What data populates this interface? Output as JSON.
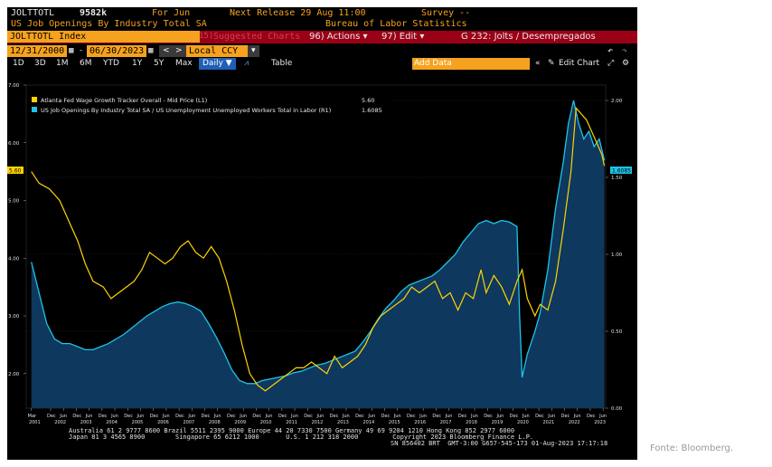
{
  "header": {
    "ticker": "JOLTTOTL",
    "value": "9582k",
    "period": "For Jun",
    "next_release": "Next Release 29 Aug 11:00",
    "survey": "Survey --",
    "series_title": "US Job Openings By Industry Total SA",
    "source": "Bureau of Labor Statistics",
    "index_label": "JOLTTOTL Index",
    "suggested_charts": "Suggested Charts",
    "suggested_num": "15)",
    "actions": "96) Actions ▾",
    "edit": "97) Edit ▾",
    "chart_name": "G 232: Jolts / Desempregados"
  },
  "toolbar": {
    "start_date": "12/31/2000",
    "end_date": "06/30/2023",
    "currency": "Local CCY",
    "ranges": [
      "1D",
      "3D",
      "1M",
      "6M",
      "YTD",
      "1Y",
      "5Y",
      "Max"
    ],
    "frequency": "Daily ▼",
    "table": "Table",
    "add_data": "Add Data",
    "edit_chart": "Edit Chart"
  },
  "legend": {
    "series1": "Atlanta Fed Wage Growth Tracker Overall - Mid Price (L1)",
    "series1_value": "5.60",
    "series2": "US Job Openings By Industry Total SA / US Unemployment Unemployed Workers Total in Labor (R1)",
    "series2_value": "1.6085"
  },
  "axis_badges": {
    "left": "5.60",
    "right": "1.6085"
  },
  "footer": {
    "line1": "Australia 61 2 9777 8600 Brazil 5511 2395 9000 Europe 44 20 7330 7500 Germany 49 69 9204 1210 Hong Kong 852 2977 6000",
    "line2": "Japan 81 3 4565 8900        Singapore 65 6212 1000       U.S. 1 212 318 2000         Copyright 2023 Bloomberg Finance L.P.",
    "line3": "SN 856402 BRT  GMT-3:00 G657-545-173 01-Aug-2023 17:17:18"
  },
  "caption": "Fonte: Bloomberg.",
  "chart_data": {
    "type": "line",
    "title": "G 232: Jolts / Desempregados",
    "x_start": "Mar 2001",
    "x_end": "Jun 2023",
    "x_month_labels": [
      "Mar",
      "Dec",
      "Jun",
      "Dec",
      "Jun",
      "Dec",
      "Jun",
      "Dec",
      "Jun",
      "Dec",
      "Jun",
      "Dec",
      "Jun",
      "Dec",
      "Jun",
      "Dec",
      "Jun",
      "Dec",
      "Jun",
      "Dec",
      "Jun",
      "Dec",
      "Jun",
      "Dec",
      "Jun",
      "Dec",
      "Jun",
      "Dec",
      "Jun",
      "Dec",
      "Jun",
      "Dec",
      "Jun",
      "Dec",
      "Jun",
      "Dec",
      "Jun",
      "Dec",
      "Jun",
      "Dec",
      "Jun",
      "Dec",
      "Jun",
      "Dec",
      "Jun",
      "Dec",
      "Jun"
    ],
    "x_year_labels": [
      "2001",
      "2002",
      "2003",
      "2004",
      "2005",
      "2006",
      "2007",
      "2008",
      "2009",
      "2010",
      "2011",
      "2012",
      "2013",
      "2014",
      "2015",
      "2016",
      "2017",
      "2018",
      "2019",
      "2020",
      "2021",
      "2022",
      "2023"
    ],
    "left_axis": {
      "ylim": [
        1.4,
        7.0
      ],
      "ticks": [
        "2.00",
        "3.00",
        "4.00",
        "5.00",
        "6.00",
        "7.00"
      ]
    },
    "right_axis": {
      "ylim": [
        0.0,
        2.1
      ],
      "ticks": [
        "0.00",
        "0.50",
        "1.00",
        "1.50",
        "2.00"
      ]
    },
    "grid": true,
    "legend_position": "top-left",
    "series": [
      {
        "name": "Atlanta Fed Wage Growth Tracker Overall - Mid Price (L1)",
        "axis": "left",
        "color": "#ffd400",
        "style": "line",
        "points": [
          [
            2001.2,
            5.5
          ],
          [
            2001.5,
            5.3
          ],
          [
            2001.9,
            5.2
          ],
          [
            2002.3,
            5.0
          ],
          [
            2002.7,
            4.6
          ],
          [
            2003.0,
            4.3
          ],
          [
            2003.3,
            3.9
          ],
          [
            2003.6,
            3.6
          ],
          [
            2004.0,
            3.5
          ],
          [
            2004.3,
            3.3
          ],
          [
            2004.6,
            3.4
          ],
          [
            2004.9,
            3.5
          ],
          [
            2005.2,
            3.6
          ],
          [
            2005.5,
            3.8
          ],
          [
            2005.8,
            4.1
          ],
          [
            2006.1,
            4.0
          ],
          [
            2006.4,
            3.9
          ],
          [
            2006.7,
            4.0
          ],
          [
            2007.0,
            4.2
          ],
          [
            2007.3,
            4.3
          ],
          [
            2007.6,
            4.1
          ],
          [
            2007.9,
            4.0
          ],
          [
            2008.2,
            4.2
          ],
          [
            2008.5,
            4.0
          ],
          [
            2008.8,
            3.6
          ],
          [
            2009.1,
            3.1
          ],
          [
            2009.4,
            2.5
          ],
          [
            2009.7,
            2.0
          ],
          [
            2010.0,
            1.8
          ],
          [
            2010.3,
            1.7
          ],
          [
            2010.6,
            1.8
          ],
          [
            2010.9,
            1.9
          ],
          [
            2011.2,
            2.0
          ],
          [
            2011.5,
            2.1
          ],
          [
            2011.8,
            2.1
          ],
          [
            2012.1,
            2.2
          ],
          [
            2012.4,
            2.1
          ],
          [
            2012.7,
            2.0
          ],
          [
            2013.0,
            2.3
          ],
          [
            2013.3,
            2.1
          ],
          [
            2013.6,
            2.2
          ],
          [
            2013.9,
            2.3
          ],
          [
            2014.2,
            2.5
          ],
          [
            2014.5,
            2.8
          ],
          [
            2014.8,
            3.0
          ],
          [
            2015.1,
            3.1
          ],
          [
            2015.4,
            3.2
          ],
          [
            2015.7,
            3.3
          ],
          [
            2016.0,
            3.5
          ],
          [
            2016.3,
            3.4
          ],
          [
            2016.6,
            3.5
          ],
          [
            2016.9,
            3.6
          ],
          [
            2017.2,
            3.3
          ],
          [
            2017.5,
            3.4
          ],
          [
            2017.8,
            3.1
          ],
          [
            2018.1,
            3.4
          ],
          [
            2018.4,
            3.3
          ],
          [
            2018.7,
            3.8
          ],
          [
            2018.9,
            3.4
          ],
          [
            2019.2,
            3.7
          ],
          [
            2019.5,
            3.5
          ],
          [
            2019.8,
            3.2
          ],
          [
            2020.1,
            3.6
          ],
          [
            2020.3,
            3.8
          ],
          [
            2020.5,
            3.3
          ],
          [
            2020.8,
            3.0
          ],
          [
            2021.0,
            3.2
          ],
          [
            2021.3,
            3.1
          ],
          [
            2021.6,
            3.6
          ],
          [
            2021.9,
            4.5
          ],
          [
            2022.2,
            5.5
          ],
          [
            2022.4,
            6.6
          ],
          [
            2022.6,
            6.5
          ],
          [
            2022.8,
            6.4
          ],
          [
            2023.0,
            6.2
          ],
          [
            2023.2,
            6.0
          ],
          [
            2023.4,
            5.8
          ],
          [
            2023.5,
            5.6
          ]
        ]
      },
      {
        "name": "US Job Openings By Industry Total SA / US Unemployment Unemployed Workers Total in Labor (R1)",
        "axis": "right",
        "color": "#1fc3e6",
        "style": "area",
        "points": [
          [
            2001.2,
            0.95
          ],
          [
            2001.5,
            0.75
          ],
          [
            2001.8,
            0.55
          ],
          [
            2002.1,
            0.45
          ],
          [
            2002.4,
            0.42
          ],
          [
            2002.7,
            0.42
          ],
          [
            2003.0,
            0.4
          ],
          [
            2003.3,
            0.38
          ],
          [
            2003.6,
            0.38
          ],
          [
            2003.9,
            0.4
          ],
          [
            2004.2,
            0.42
          ],
          [
            2004.5,
            0.45
          ],
          [
            2004.8,
            0.48
          ],
          [
            2005.1,
            0.52
          ],
          [
            2005.4,
            0.56
          ],
          [
            2005.7,
            0.6
          ],
          [
            2006.0,
            0.63
          ],
          [
            2006.3,
            0.66
          ],
          [
            2006.6,
            0.68
          ],
          [
            2006.9,
            0.69
          ],
          [
            2007.2,
            0.68
          ],
          [
            2007.5,
            0.66
          ],
          [
            2007.8,
            0.63
          ],
          [
            2008.1,
            0.55
          ],
          [
            2008.4,
            0.46
          ],
          [
            2008.7,
            0.36
          ],
          [
            2009.0,
            0.25
          ],
          [
            2009.3,
            0.18
          ],
          [
            2009.6,
            0.16
          ],
          [
            2009.9,
            0.16
          ],
          [
            2010.2,
            0.18
          ],
          [
            2010.5,
            0.19
          ],
          [
            2010.8,
            0.2
          ],
          [
            2011.1,
            0.21
          ],
          [
            2011.4,
            0.23
          ],
          [
            2011.7,
            0.24
          ],
          [
            2012.0,
            0.26
          ],
          [
            2012.3,
            0.28
          ],
          [
            2012.6,
            0.29
          ],
          [
            2012.9,
            0.31
          ],
          [
            2013.2,
            0.33
          ],
          [
            2013.5,
            0.35
          ],
          [
            2013.8,
            0.37
          ],
          [
            2014.1,
            0.43
          ],
          [
            2014.4,
            0.5
          ],
          [
            2014.7,
            0.58
          ],
          [
            2015.0,
            0.65
          ],
          [
            2015.3,
            0.7
          ],
          [
            2015.6,
            0.76
          ],
          [
            2015.9,
            0.8
          ],
          [
            2016.2,
            0.82
          ],
          [
            2016.5,
            0.84
          ],
          [
            2016.8,
            0.86
          ],
          [
            2017.1,
            0.9
          ],
          [
            2017.4,
            0.95
          ],
          [
            2017.7,
            1.0
          ],
          [
            2018.0,
            1.08
          ],
          [
            2018.3,
            1.14
          ],
          [
            2018.6,
            1.2
          ],
          [
            2018.9,
            1.22
          ],
          [
            2019.2,
            1.2
          ],
          [
            2019.5,
            1.22
          ],
          [
            2019.8,
            1.21
          ],
          [
            2020.1,
            1.18
          ],
          [
            2020.2,
            0.6
          ],
          [
            2020.3,
            0.2
          ],
          [
            2020.5,
            0.35
          ],
          [
            2020.8,
            0.5
          ],
          [
            2021.0,
            0.62
          ],
          [
            2021.3,
            0.9
          ],
          [
            2021.6,
            1.3
          ],
          [
            2021.9,
            1.6
          ],
          [
            2022.1,
            1.85
          ],
          [
            2022.3,
            2.0
          ],
          [
            2022.5,
            1.85
          ],
          [
            2022.7,
            1.75
          ],
          [
            2022.9,
            1.8
          ],
          [
            2023.1,
            1.7
          ],
          [
            2023.3,
            1.75
          ],
          [
            2023.5,
            1.61
          ]
        ]
      }
    ]
  }
}
